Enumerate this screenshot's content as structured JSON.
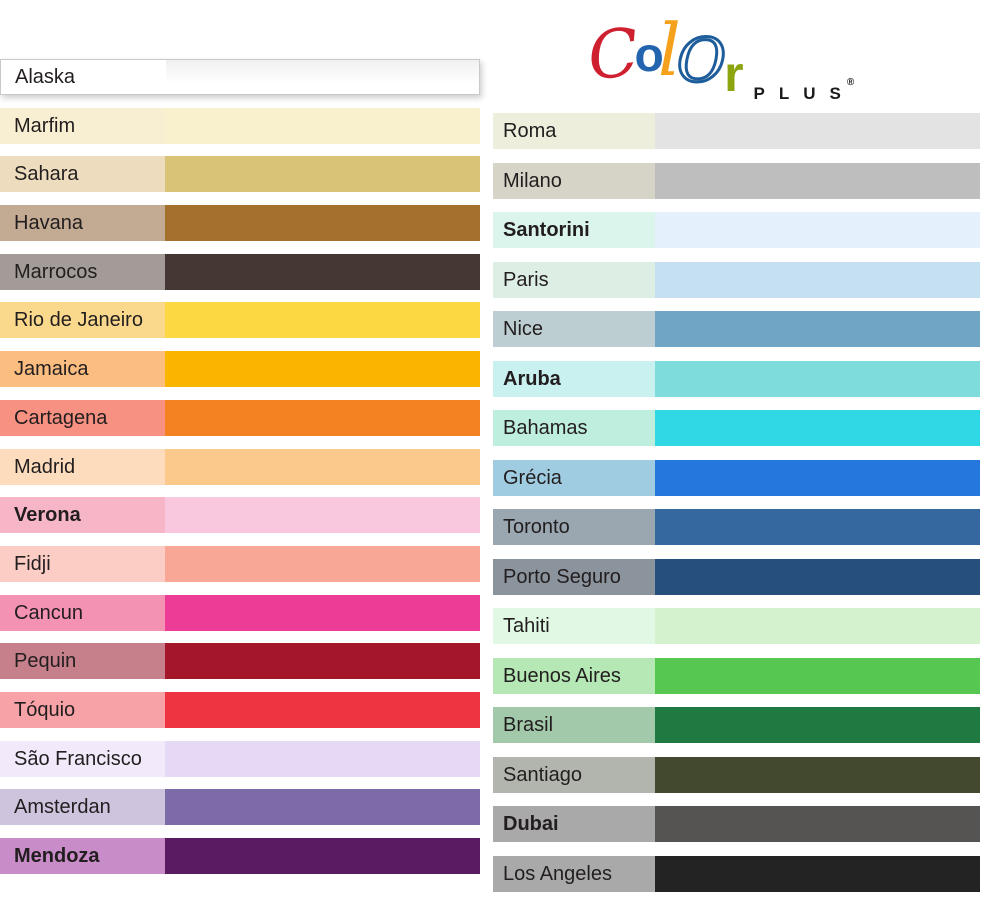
{
  "page": {
    "background": "#ffffff",
    "text_color": "#221e1f"
  },
  "logo": {
    "word": "Color",
    "letters": [
      {
        "char": "C",
        "color": "#cf2030",
        "style": "script"
      },
      {
        "char": "o",
        "color": "#2264ae",
        "style": "solid"
      },
      {
        "char": "l",
        "color": "#f6a11b",
        "style": "script"
      },
      {
        "char": "O",
        "color": "#1e5d9b",
        "style": "outline"
      },
      {
        "char": "r",
        "color": "#8ca50f",
        "style": "solid"
      }
    ],
    "suffix": "PLUS",
    "registered_mark": "®"
  },
  "columns": {
    "left": {
      "rows": [
        {
          "name": "Alaska",
          "label_bg": "#ffffff",
          "swatch": "#ffffff",
          "variant": "alaska"
        },
        {
          "name": "Marfim",
          "label_bg": "#f8efd2",
          "swatch": "#f9f0cd"
        },
        {
          "name": "Sahara",
          "label_bg": "#edddbe",
          "swatch": "#d9c377"
        },
        {
          "name": "Havana",
          "label_bg": "#c3aa93",
          "swatch": "#a4702e"
        },
        {
          "name": "Marrocos",
          "label_bg": "#a39b97",
          "swatch": "#453734"
        },
        {
          "name": "Rio de Janeiro",
          "label_bg": "#fbd98c",
          "swatch": "#fcd943"
        },
        {
          "name": "Jamaica",
          "label_bg": "#fbbd80",
          "swatch": "#f9b500"
        },
        {
          "name": "Cartagena",
          "label_bg": "#f79181",
          "swatch": "#f58220"
        },
        {
          "name": "Madrid",
          "label_bg": "#fcdcbd",
          "swatch": "#fbc98c"
        },
        {
          "name": "Verona",
          "label_bg": "#f6b6c8",
          "swatch": "#fac8de",
          "bold": true
        },
        {
          "name": "Fidji",
          "label_bg": "#fccdc5",
          "swatch": "#f8a695"
        },
        {
          "name": "Cancun",
          "label_bg": "#f392b2",
          "swatch": "#ec3c95"
        },
        {
          "name": "Pequin",
          "label_bg": "#c5808b",
          "swatch": "#a41629"
        },
        {
          "name": "Tóquio",
          "label_bg": "#f7a2a6",
          "swatch": "#ee3440"
        },
        {
          "name": "São Francisco",
          "label_bg": "#f2eafb",
          "swatch": "#e5d9f6"
        },
        {
          "name": "Amsterdan",
          "label_bg": "#cfc4dd",
          "swatch": "#7c6aa9"
        },
        {
          "name": "Mendoza",
          "label_bg": "#c88dc8",
          "swatch": "#5b1b62",
          "bold": true
        }
      ]
    },
    "right": {
      "rows": [
        {
          "name": "Roma",
          "label_bg": "#eeeedd",
          "swatch": "#e3e3e4"
        },
        {
          "name": "Milano",
          "label_bg": "#d6d4c7",
          "swatch": "#bebebe"
        },
        {
          "name": "Santorini",
          "label_bg": "#dcf5ec",
          "swatch": "#e4f0fb",
          "bold": true
        },
        {
          "name": "Paris",
          "label_bg": "#ddeee5",
          "swatch": "#c5e0f1"
        },
        {
          "name": "Nice",
          "label_bg": "#bdced3",
          "swatch": "#70a5c5"
        },
        {
          "name": "Aruba",
          "label_bg": "#c9f1ef",
          "swatch": "#7fdcdd",
          "bold": true
        },
        {
          "name": "Bahamas",
          "label_bg": "#beeedd",
          "swatch": "#2ed9e5"
        },
        {
          "name": "Grécia",
          "label_bg": "#a0cce1",
          "swatch": "#2478dd"
        },
        {
          "name": "Toronto",
          "label_bg": "#9aa7b1",
          "swatch": "#35689f"
        },
        {
          "name": "Porto Seguro",
          "label_bg": "#8b939d",
          "swatch": "#274f7e"
        },
        {
          "name": "Tahiti",
          "label_bg": "#e1f8e5",
          "swatch": "#d3f2cd"
        },
        {
          "name": "Buenos Aires",
          "label_bg": "#b5e8b5",
          "swatch": "#56c750"
        },
        {
          "name": "Brasil",
          "label_bg": "#a3c9ab",
          "swatch": "#1e7a41"
        },
        {
          "name": "Santiago",
          "label_bg": "#b1b5ad",
          "swatch": "#43492f"
        },
        {
          "name": "Dubai",
          "label_bg": "#a9a9a9",
          "swatch": "#565353",
          "bold": true
        },
        {
          "name": "Los Angeles",
          "label_bg": "#a9a9a9",
          "swatch": "#232323"
        }
      ]
    }
  }
}
